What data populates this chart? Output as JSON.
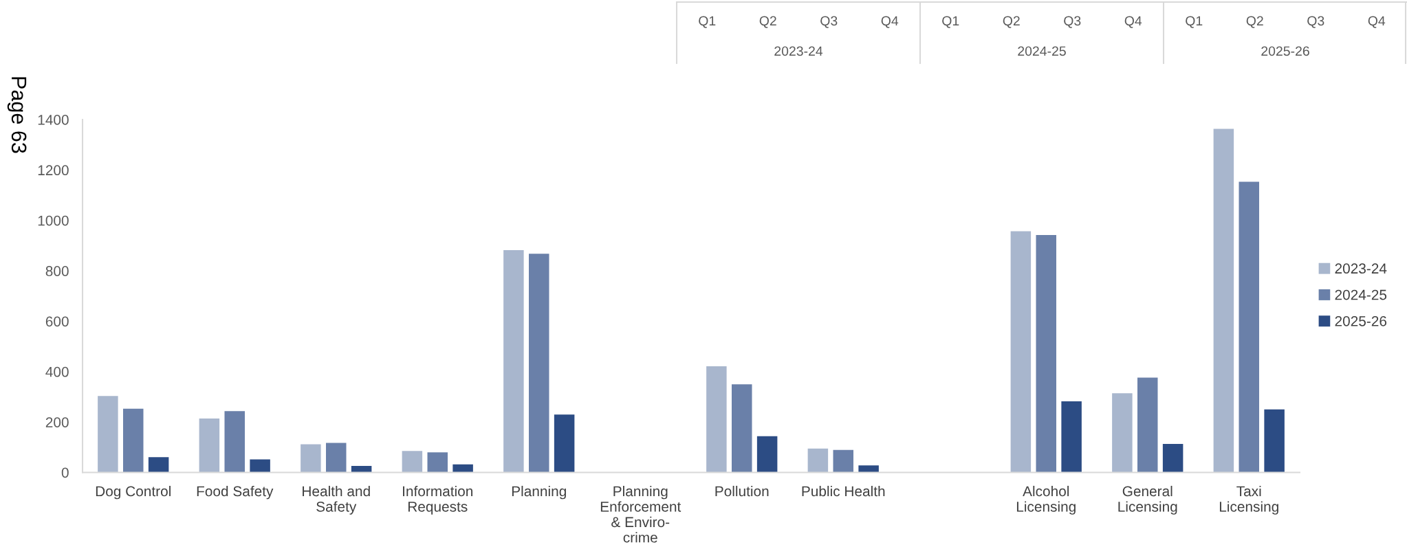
{
  "chart_data": {
    "type": "bar",
    "categories": [
      "Dog Control",
      "Food Safety",
      "Health and\nSafety",
      "Information\nRequests",
      "Planning",
      "Planning\nEnforcement\n& Enviro-\ncrime",
      "Pollution",
      "Public Health",
      null,
      "Alcohol\nLicensing",
      "General\nLicensing",
      "Taxi\nLicensing"
    ],
    "series": [
      {
        "name": "2023-24",
        "color": "#a8b6cd",
        "values": [
          303,
          214,
          112,
          85,
          882,
          null,
          421,
          95,
          null,
          957,
          314,
          1363
        ]
      },
      {
        "name": "2024-25",
        "color": "#6a80a9",
        "values": [
          253,
          243,
          117,
          80,
          868,
          null,
          350,
          89,
          null,
          942,
          376,
          1153
        ]
      },
      {
        "name": "2025-26",
        "color": "#2c4c84",
        "values": [
          61,
          52,
          26,
          32,
          230,
          null,
          144,
          28,
          null,
          282,
          113,
          250
        ]
      }
    ],
    "ylim": [
      0,
      1400
    ],
    "yticks": [
      0,
      200,
      400,
      600,
      800,
      1000,
      1200,
      1400
    ],
    "grid": false,
    "legend": "right",
    "annotations": [
      "Page 63",
      "Q1",
      "Q2",
      "Q3",
      "Q4",
      "Q1",
      "Q2",
      "Q3",
      "Q4",
      "Q1",
      "Q2",
      "Q3",
      "Q4",
      "2023-24",
      "2024-25",
      "2025-26"
    ]
  }
}
